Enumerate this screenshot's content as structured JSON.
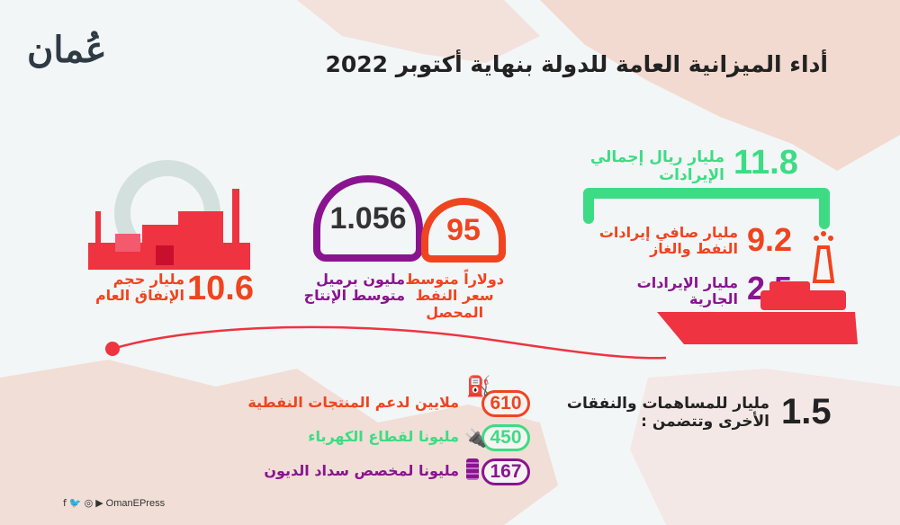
{
  "logo": {
    "text": "عُمان"
  },
  "title": "أداء الميزانية العامة للدولة بنهاية أكتوبر 2022",
  "colors": {
    "green": "#3ddc84",
    "orange": "#f0441f",
    "purple": "#8a1490",
    "red": "#ef3340",
    "dark": "#222222",
    "background": "#f3f6f7"
  },
  "revenue": {
    "total": {
      "value": "11.8",
      "label_line1": "مليار ريال إجمالي",
      "label_line2": "الإيرادات"
    },
    "oil_gas": {
      "value": "9.2",
      "label_line1": "مليار صافي إيرادات",
      "label_line2": "النفط والغاز"
    },
    "current": {
      "value": "2.5",
      "label_line1": "مليار الإيرادات",
      "label_line2": "الجارية"
    }
  },
  "oil_price": {
    "value": "95",
    "label_line1": "دولاراً متوسط",
    "label_line2": "سعر النفط",
    "label_line3": "المحصل"
  },
  "production": {
    "value": "1.056",
    "label_line1": "مليون برميل",
    "label_line2": "متوسط الإنتاج"
  },
  "spending": {
    "value": "10.6",
    "label_line1": "مليار حجم",
    "label_line2": "الإنفاق العام"
  },
  "contributions": {
    "value": "1.5",
    "label_line1": "مليار للمساهمات والنفقات",
    "label_line2": "الأخرى وتتضمن :",
    "items": [
      {
        "value": "610",
        "label": "ملايين لدعم المنتجات النفطية",
        "icon": "oil-rig-icon"
      },
      {
        "value": "450",
        "label": "مليونا لقطاع الكهرباء",
        "icon": "plug-icon"
      },
      {
        "value": "167",
        "label": "مليونا لمخصص سداد الديون",
        "icon": "coins-icon"
      }
    ]
  },
  "footer": {
    "handle": "OmanEPress",
    "icons": [
      "facebook-icon",
      "twitter-icon",
      "instagram-icon",
      "youtube-icon"
    ]
  }
}
